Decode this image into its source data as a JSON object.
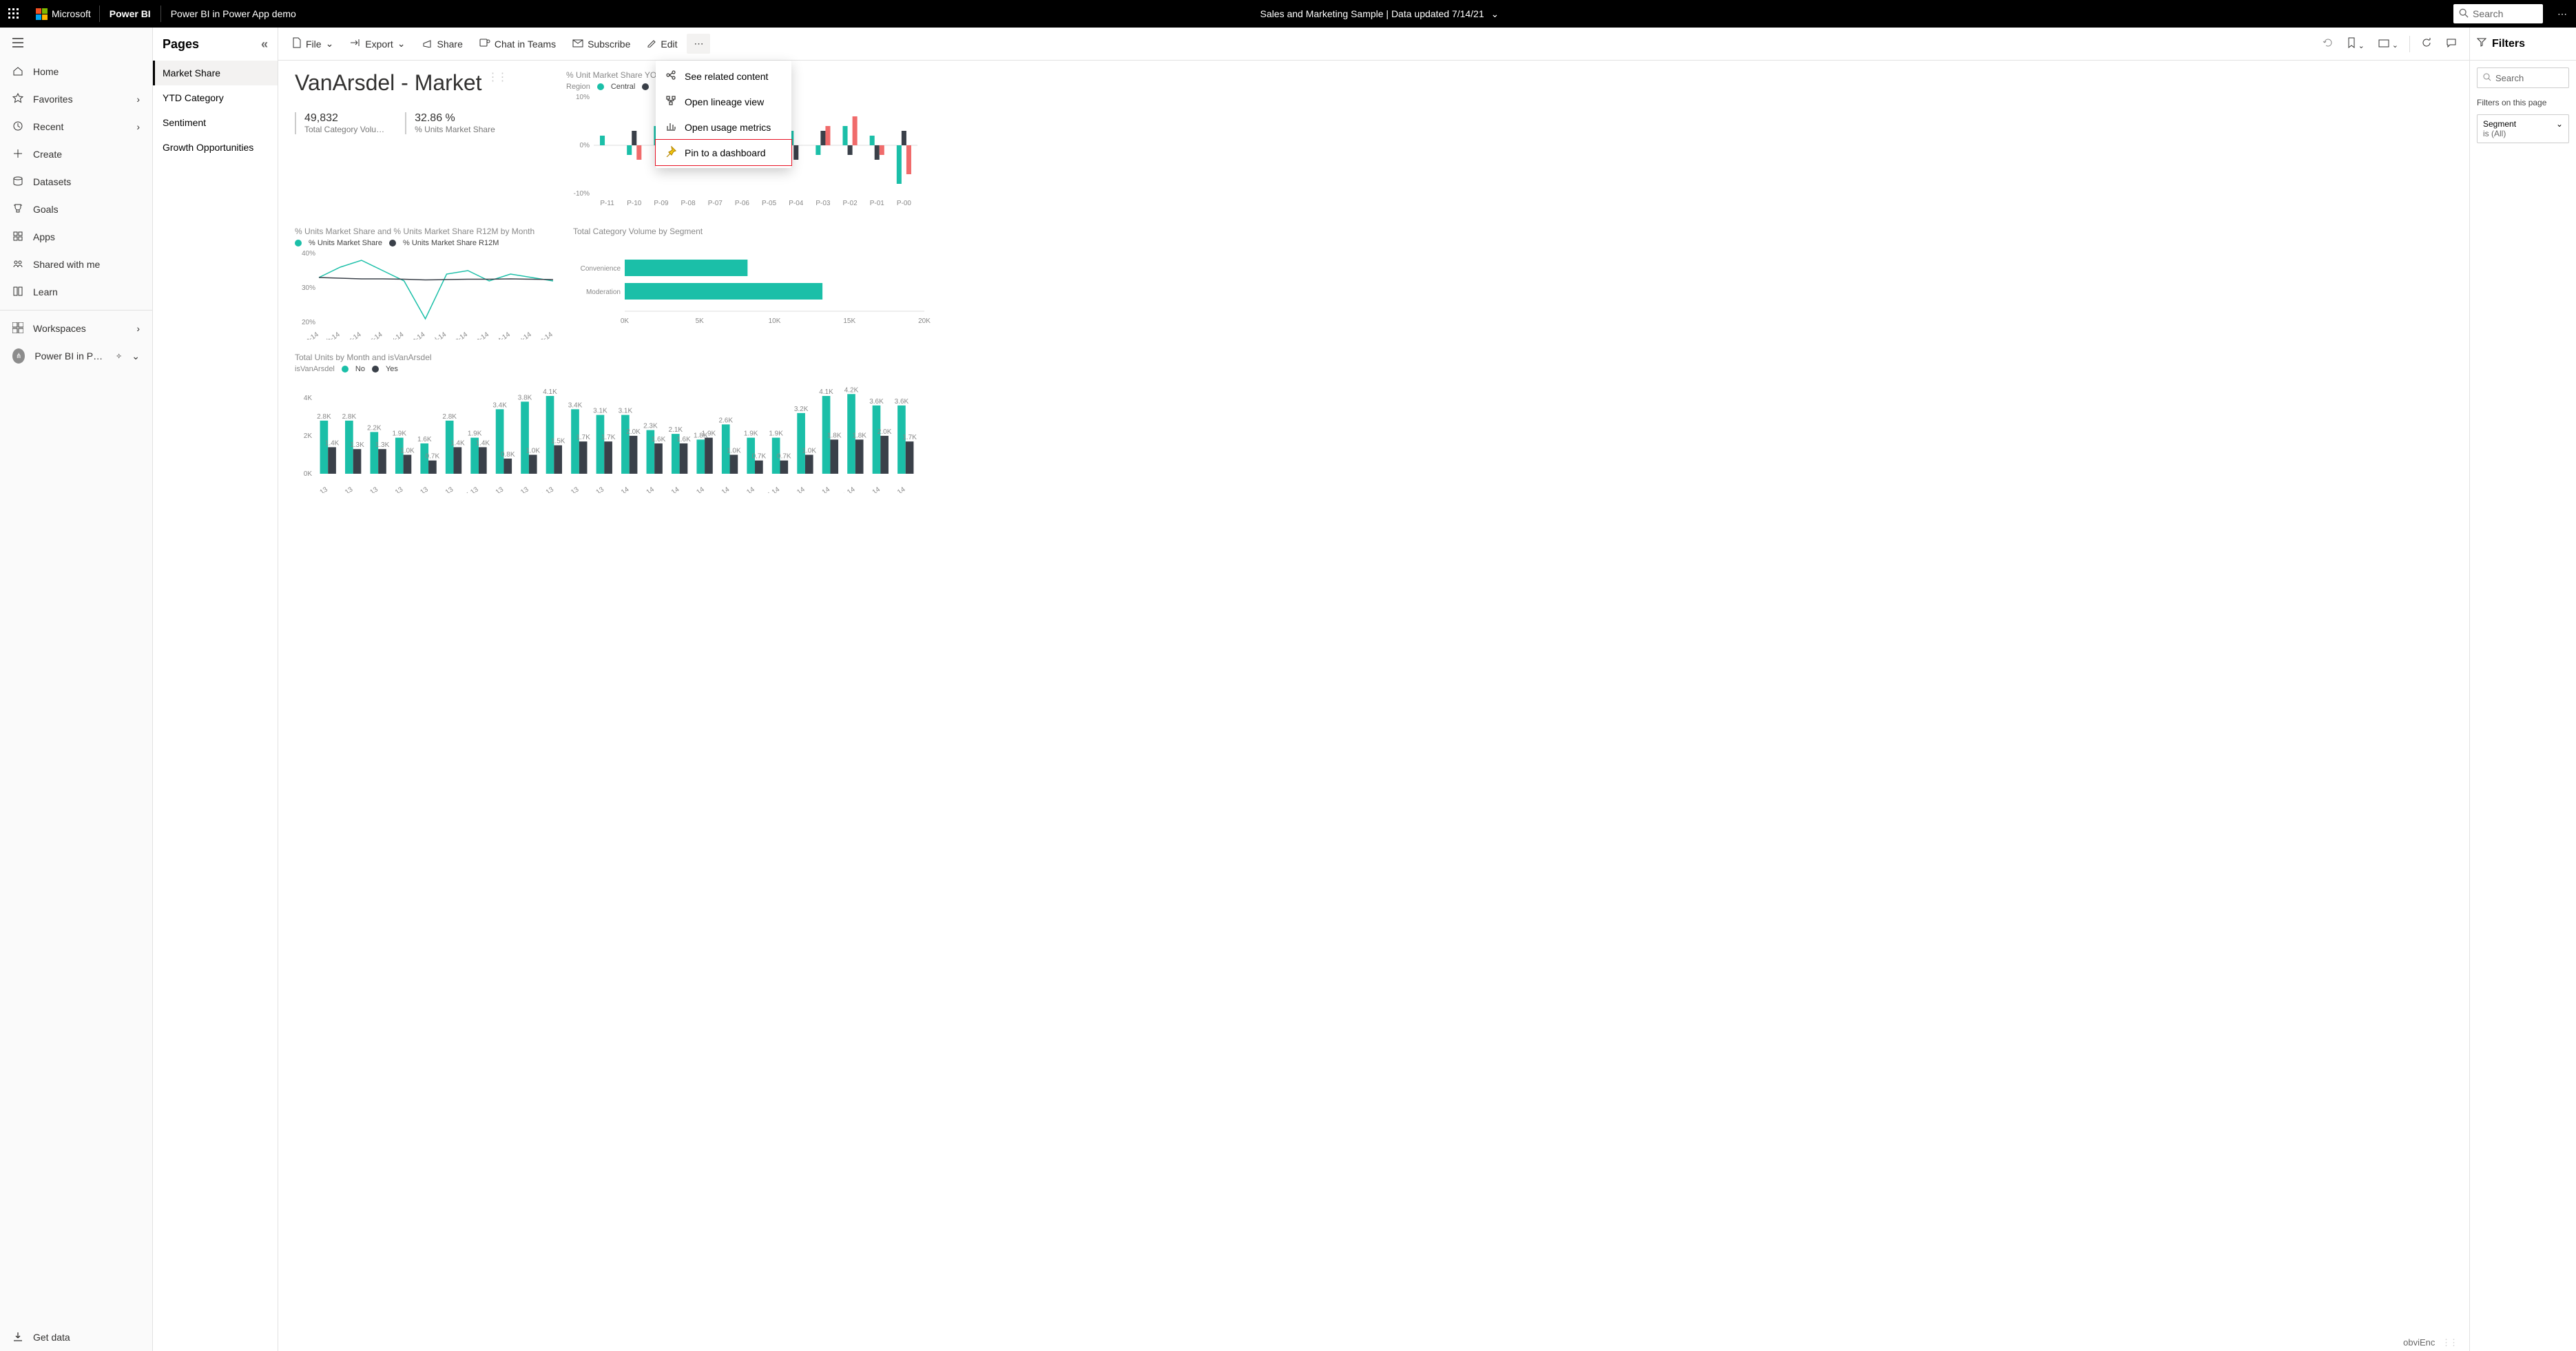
{
  "colors": {
    "teal": "#1bbfa8",
    "dark": "#3a4049",
    "red": "#f06b6b",
    "grey": "#888888",
    "axisGrid": "#dddddd",
    "highlightRed": "#e81123"
  },
  "topbar": {
    "company": "Microsoft",
    "product": "Power BI",
    "breadcrumb": "Power BI in Power App demo",
    "center": "Sales and Marketing Sample   |   Data updated 7/14/21",
    "searchPlaceholder": "Search",
    "moreGlyph": "⋯"
  },
  "rail": {
    "items": [
      {
        "icon": "home",
        "label": "Home",
        "chev": false
      },
      {
        "icon": "star",
        "label": "Favorites",
        "chev": true
      },
      {
        "icon": "clock",
        "label": "Recent",
        "chev": true
      },
      {
        "icon": "plus",
        "label": "Create",
        "chev": false
      },
      {
        "icon": "db",
        "label": "Datasets",
        "chev": false
      },
      {
        "icon": "trophy",
        "label": "Goals",
        "chev": false
      },
      {
        "icon": "apps",
        "label": "Apps",
        "chev": false
      },
      {
        "icon": "people",
        "label": "Shared with me",
        "chev": false
      },
      {
        "icon": "book",
        "label": "Learn",
        "chev": false
      }
    ],
    "workspaces": "Workspaces",
    "currentWs": "Power BI in Powe…",
    "getdata": "Get data"
  },
  "pagesPanel": {
    "header": "Pages",
    "pages": [
      "Market Share",
      "YTD Category",
      "Sentiment",
      "Growth Opportunities"
    ],
    "activeIndex": 0
  },
  "cmdbar": {
    "file": "File",
    "export": "Export",
    "share": "Share",
    "chat": "Chat in Teams",
    "subscribe": "Subscribe",
    "edit": "Edit"
  },
  "moreMenu": {
    "items": [
      {
        "label": "See related content",
        "icon": "related"
      },
      {
        "label": "Open lineage view",
        "icon": "lineage"
      },
      {
        "label": "Open usage metrics",
        "icon": "metrics"
      },
      {
        "label": "Pin to a dashboard",
        "icon": "pin",
        "highlight": true
      }
    ]
  },
  "filters": {
    "header": "Filters",
    "searchPlaceholder": "Search",
    "pageLabel": "Filters on this page",
    "card": {
      "field": "Segment",
      "summary": "is (All)"
    }
  },
  "report": {
    "title": "VanArsdel - Market",
    "kpi1": {
      "value": "49,832",
      "label": "Total Category Volu…"
    },
    "kpi2": {
      "value": "32.86 %",
      "label": "% Units Market Share"
    },
    "yoyChart": {
      "title": "% Unit Market Share YOY Change",
      "legendLabel": "Region",
      "legend": [
        {
          "name": "Central",
          "color": "#1bbfa8"
        },
        {
          "name": "East",
          "color": "#3a4049"
        },
        {
          "name": "West",
          "color": "#f06b6b"
        }
      ],
      "yTicks": [
        -10,
        0,
        10
      ],
      "yTickLabels": [
        "-10%",
        "0%",
        "10%"
      ],
      "categories": [
        "P-11",
        "P-10",
        "P-09",
        "P-08",
        "P-07",
        "P-06",
        "P-05",
        "P-04",
        "P-03",
        "P-02",
        "P-01",
        "P-00"
      ],
      "series": {
        "Central": [
          2,
          -2,
          4,
          -3,
          0,
          0,
          2,
          3,
          -2,
          4,
          2,
          -8
        ],
        "East": [
          0,
          3,
          -3,
          4,
          0,
          0,
          0,
          -3,
          3,
          -2,
          -3,
          3
        ],
        "West": [
          0,
          -3,
          6,
          0,
          0,
          0,
          0,
          0,
          4,
          6,
          -2,
          -6
        ]
      }
    },
    "lineChart": {
      "title": "% Units Market Share and % Units Market Share R12M by Month",
      "legend": [
        {
          "name": "% Units Market Share",
          "color": "#1bbfa8"
        },
        {
          "name": "% Units Market Share R12M",
          "color": "#3a4049"
        }
      ],
      "yTicks": [
        20,
        30,
        40
      ],
      "yTickLabels": [
        "20%",
        "30%",
        "40%"
      ],
      "categories": [
        "Jan-14",
        "Feb-14",
        "Mar-14",
        "Apr-14",
        "May-14",
        "Jun-14",
        "Jul-14",
        "Aug-14",
        "Sep-14",
        "Oct-14",
        "Nov-14",
        "Dec-14"
      ],
      "series": {
        "share": [
          33,
          36,
          38,
          35,
          32,
          21,
          34,
          35,
          32,
          34,
          33,
          32
        ],
        "r12m": [
          33,
          32.8,
          32.6,
          32.6,
          32.5,
          32.3,
          32.4,
          32.5,
          32.5,
          32.6,
          32.5,
          32.4
        ]
      }
    },
    "hbarChart": {
      "title": "Total Category Volume by Segment",
      "xmax": 20000,
      "xTicks": [
        0,
        5000,
        10000,
        15000,
        20000
      ],
      "xTickLabels": [
        "0K",
        "5K",
        "10K",
        "15K",
        "20K"
      ],
      "bars": [
        {
          "label": "Convenience",
          "value": 8200
        },
        {
          "label": "Moderation",
          "value": 13200
        }
      ],
      "barColor": "#1bbfa8"
    },
    "unitsChart": {
      "title": "Total Units by Month and isVanArsdel",
      "legendLabel": "isVanArsdel",
      "legend": [
        {
          "name": "No",
          "color": "#1bbfa8"
        },
        {
          "name": "Yes",
          "color": "#3a4049"
        }
      ],
      "ymax": 4500,
      "yTicks": [
        0,
        2000,
        4000
      ],
      "yTickLabels": [
        "0K",
        "2K",
        "4K"
      ],
      "categories": [
        "Jan-13",
        "Feb-13",
        "Mar-13",
        "Apr-13",
        "May-13",
        "Jun-13",
        "Jul-13",
        "Aug-13",
        "Sep-13",
        "Oct-13",
        "Nov-13",
        "Dec-13",
        "Jan-14",
        "Feb-14",
        "Mar-14",
        "Apr-14",
        "May-14",
        "Jun-14",
        "Jul-14",
        "Aug-14",
        "Sep-14",
        "Oct-14",
        "Nov-14",
        "Dec-14"
      ],
      "series": {
        "No": [
          2.8,
          2.8,
          2.2,
          1.9,
          1.6,
          2.8,
          1.9,
          3.4,
          3.8,
          4.1,
          3.4,
          3.1,
          3.1,
          2.3,
          2.1,
          1.8,
          2.6,
          1.9,
          1.9,
          3.2,
          4.1,
          4.2,
          3.6,
          3.6
        ],
        "Yes": [
          1.4,
          1.3,
          1.3,
          1.0,
          0.7,
          1.4,
          1.4,
          0.8,
          1.0,
          1.5,
          1.7,
          1.7,
          2.0,
          1.6,
          1.6,
          1.9,
          1.0,
          0.7,
          0.7,
          1.0,
          1.8,
          1.8,
          2.0,
          1.7
        ]
      },
      "showNoLabels": [
        true,
        true,
        true,
        true,
        true,
        true,
        true,
        true,
        true,
        true,
        true,
        true,
        true,
        true,
        true,
        true,
        true,
        true,
        true,
        true,
        true,
        true,
        true,
        true
      ]
    },
    "brand": "obviEnc"
  }
}
